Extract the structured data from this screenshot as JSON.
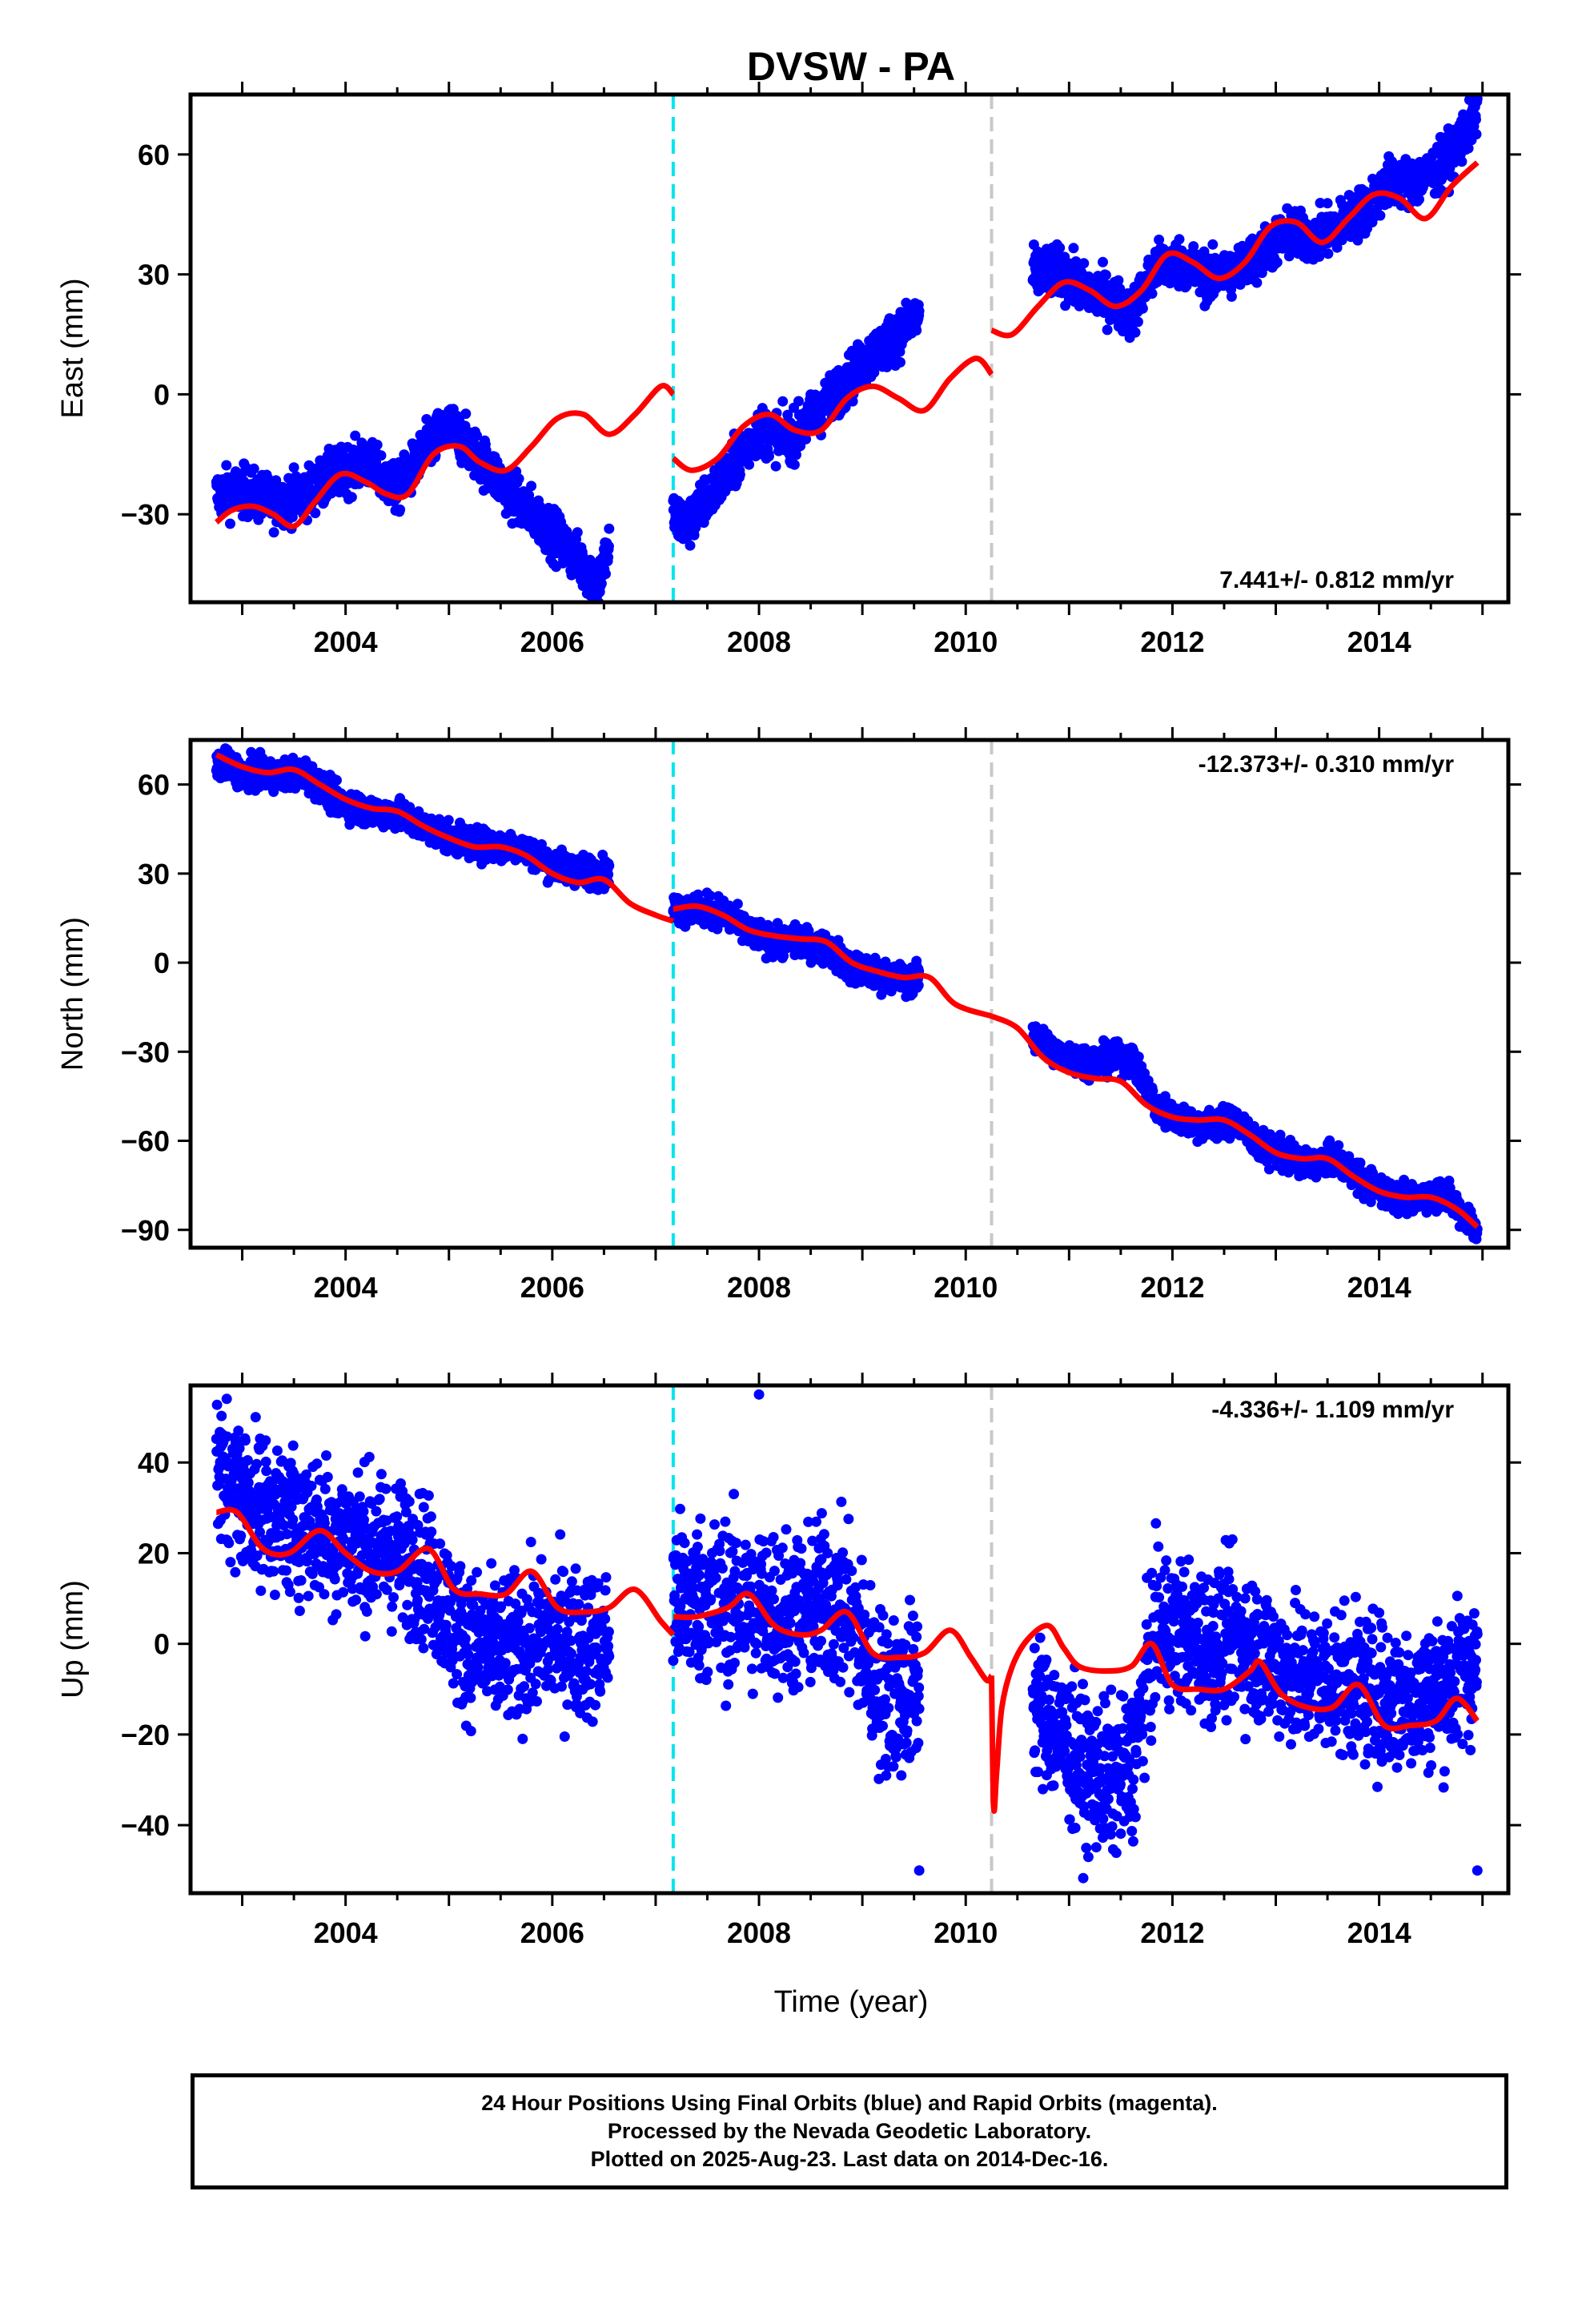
{
  "title": "DVSW - PA",
  "xlabel": "Time (year)",
  "footer": {
    "line1": "24 Hour Positions Using Final Orbits (blue) and Rapid Orbits (magenta).",
    "line2": "Processed by the Nevada Geodetic Laboratory.",
    "line3": "Plotted on 2025-Aug-23. Last data on 2014-Dec-16."
  },
  "colors": {
    "data": "#0000ff",
    "model": "#ff0000",
    "cyan_line": "#00e5ee",
    "gray_line": "#c8c8c8"
  },
  "chart_data": [
    {
      "type": "scatter",
      "ylabel": "East (mm)",
      "rate": "7.441+/- 0.812 mm/yr",
      "rate_position": "bottom-right",
      "xlim": [
        2002.5,
        2015.25
      ],
      "ylim": [
        -52,
        75
      ],
      "x_ticks": [
        2004,
        2006,
        2008,
        2010,
        2012,
        2014
      ],
      "y_ticks": [
        60,
        30,
        0,
        -30
      ],
      "y_tick_labels": [
        "60",
        "30",
        "0",
        "−30"
      ],
      "vlines": [
        {
          "x": 2007.17,
          "color": "cyan"
        },
        {
          "x": 2010.25,
          "color": "gray"
        }
      ],
      "scatter_bands": [
        {
          "x": [
            2002.75,
            2003.0,
            2003.3,
            2003.6,
            2003.9,
            2004.2,
            2004.5,
            2004.8,
            2005.0,
            2005.3,
            2005.6,
            2005.9,
            2006.2,
            2006.45,
            2006.55
          ],
          "y": [
            -25,
            -24,
            -27,
            -25,
            -20,
            -17,
            -24,
            -13,
            -8,
            -16,
            -25,
            -32,
            -40,
            -47,
            -38
          ],
          "spread": 3
        },
        {
          "x": [
            2007.17,
            2007.3,
            2007.5,
            2007.75,
            2008.0,
            2008.3,
            2008.55,
            2008.8,
            2009.1,
            2009.35,
            2009.55
          ],
          "y": [
            -30,
            -33,
            -26,
            -18,
            -9,
            -11,
            -5,
            2,
            10,
            15,
            20
          ],
          "spread": 3
        },
        {
          "x": [
            2010.65,
            2010.9,
            2011.15,
            2011.4,
            2011.6,
            2011.85,
            2012.1,
            2012.35,
            2012.6,
            2012.85,
            2013.1,
            2013.35,
            2013.6,
            2013.85,
            2014.1,
            2014.35,
            2014.6,
            2014.85,
            2014.95
          ],
          "y": [
            30,
            31,
            26,
            24,
            20,
            32,
            33,
            29,
            31,
            35,
            40,
            39,
            42,
            46,
            53,
            53,
            57,
            66,
            70
          ],
          "spread": 3
        }
      ],
      "model_segments": [
        {
          "x": [
            2002.75,
            2002.9,
            2003.1,
            2003.3,
            2003.5,
            2003.7,
            2003.95,
            2004.2,
            2004.4,
            2004.6,
            2004.85,
            2005.1,
            2005.3,
            2005.55,
            2005.8,
            2006.05,
            2006.3,
            2006.55,
            2006.8,
            2007.05,
            2007.17
          ],
          "y": [
            -32,
            -29,
            -28,
            -30,
            -33,
            -27,
            -20,
            -22,
            -25,
            -25,
            -15,
            -13,
            -17,
            -19,
            -13,
            -6,
            -5,
            -10,
            -5,
            2,
            0
          ]
        },
        {
          "x": [
            2007.17,
            2007.35,
            2007.6,
            2007.85,
            2008.1,
            2008.35,
            2008.6,
            2008.85,
            2009.1,
            2009.35,
            2009.6,
            2009.85,
            2010.1,
            2010.25
          ],
          "y": [
            -16,
            -19,
            -16,
            -8,
            -5,
            -9,
            -9,
            -1,
            2,
            -1,
            -4,
            4,
            9,
            5
          ]
        },
        {
          "x": [
            2010.25,
            2010.45,
            2010.7,
            2010.95,
            2011.2,
            2011.45,
            2011.7,
            2011.95,
            2012.2,
            2012.45,
            2012.7,
            2012.95,
            2013.2,
            2013.45,
            2013.7,
            2013.95,
            2014.2,
            2014.45,
            2014.7,
            2014.95
          ],
          "y": [
            16,
            15,
            22,
            28,
            26,
            22,
            26,
            35,
            33,
            29,
            33,
            42,
            43,
            38,
            44,
            50,
            49,
            44,
            52,
            58
          ]
        }
      ]
    },
    {
      "type": "scatter",
      "ylabel": "North (mm)",
      "rate": "-12.373+/- 0.310 mm/yr",
      "rate_position": "top-right",
      "xlim": [
        2002.5,
        2015.25
      ],
      "ylim": [
        -96,
        75
      ],
      "x_ticks": [
        2004,
        2006,
        2008,
        2010,
        2012,
        2014
      ],
      "y_ticks": [
        60,
        30,
        0,
        -30,
        -60,
        -90
      ],
      "y_tick_labels": [
        "60",
        "30",
        "0",
        "−30",
        "−60",
        "−90"
      ],
      "vlines": [
        {
          "x": 2007.17,
          "color": "cyan"
        },
        {
          "x": 2010.25,
          "color": "gray"
        }
      ],
      "scatter_bands": [
        {
          "x": [
            2002.75,
            2003.0,
            2003.3,
            2003.6,
            2003.9,
            2004.2,
            2004.5,
            2004.8,
            2005.1,
            2005.4,
            2005.7,
            2006.0,
            2006.3,
            2006.55
          ],
          "y": [
            68,
            64,
            63,
            64,
            55,
            51,
            50,
            45,
            41,
            39,
            39,
            33,
            31,
            30
          ],
          "spread": 2.5
        },
        {
          "x": [
            2007.17,
            2007.4,
            2007.65,
            2007.9,
            2008.15,
            2008.4,
            2008.65,
            2008.9,
            2009.15,
            2009.4,
            2009.55
          ],
          "y": [
            18,
            18,
            17,
            10,
            7,
            7,
            5,
            -2,
            -4,
            -6,
            -5
          ],
          "spread": 2.5
        },
        {
          "x": [
            2010.65,
            2010.9,
            2011.15,
            2011.4,
            2011.6,
            2011.85,
            2012.1,
            2012.35,
            2012.6,
            2012.85,
            2013.1,
            2013.35,
            2013.6,
            2013.85,
            2014.1,
            2014.35,
            2014.6,
            2014.85,
            2014.95
          ],
          "y": [
            -25,
            -31,
            -33,
            -33,
            -32,
            -49,
            -53,
            -55,
            -53,
            -62,
            -65,
            -68,
            -66,
            -74,
            -78,
            -80,
            -77,
            -86,
            -90
          ],
          "spread": 2.5
        }
      ],
      "model_segments": [
        {
          "x": [
            2002.75,
            2003.0,
            2003.25,
            2003.5,
            2003.75,
            2004.0,
            2004.25,
            2004.5,
            2004.75,
            2005.0,
            2005.25,
            2005.5,
            2005.75,
            2006.0,
            2006.25,
            2006.5,
            2006.75,
            2007.0,
            2007.17
          ],
          "y": [
            70,
            66,
            64,
            65,
            60,
            55,
            52,
            51,
            46,
            42,
            39,
            39,
            36,
            30,
            27,
            28,
            20,
            16,
            14
          ]
        },
        {
          "x": [
            2007.17,
            2007.4,
            2007.65,
            2007.9,
            2008.15,
            2008.4,
            2008.65,
            2008.9,
            2009.15,
            2009.4,
            2009.65,
            2009.9,
            2010.25
          ],
          "y": [
            18,
            19,
            16,
            11,
            9,
            8,
            7,
            0,
            -3,
            -5,
            -5,
            -14,
            -18
          ]
        },
        {
          "x": [
            2010.25,
            2010.5,
            2010.75,
            2011.0,
            2011.25,
            2011.5,
            2011.75,
            2012.0,
            2012.25,
            2012.5,
            2012.75,
            2013.0,
            2013.25,
            2013.5,
            2013.75,
            2014.0,
            2014.25,
            2014.5,
            2014.75,
            2014.95
          ],
          "y": [
            -18,
            -22,
            -32,
            -37,
            -39,
            -40,
            -48,
            -52,
            -53,
            -53,
            -58,
            -64,
            -66,
            -66,
            -72,
            -77,
            -79,
            -79,
            -83,
            -89
          ]
        }
      ]
    },
    {
      "type": "scatter",
      "ylabel": "Up (mm)",
      "rate": "-4.336+/- 1.109 mm/yr",
      "rate_position": "top-right",
      "xlim": [
        2002.5,
        2015.25
      ],
      "ylim": [
        -55,
        57
      ],
      "x_ticks": [
        2004,
        2006,
        2008,
        2010,
        2012,
        2014
      ],
      "y_ticks": [
        40,
        20,
        0,
        -20,
        -40
      ],
      "y_tick_labels": [
        "40",
        "20",
        "0",
        "−20",
        "−40"
      ],
      "vlines": [
        {
          "x": 2007.17,
          "color": "cyan"
        },
        {
          "x": 2010.25,
          "color": "gray"
        }
      ],
      "scatter_bands": [
        {
          "x": [
            2002.75,
            2003.0,
            2003.3,
            2003.6,
            2003.9,
            2004.2,
            2004.5,
            2004.8,
            2005.1,
            2005.4,
            2005.7,
            2006.0,
            2006.3,
            2006.55
          ],
          "y": [
            38,
            33,
            28,
            27,
            24,
            22,
            20,
            16,
            2,
            -2,
            -1,
            2,
            0,
            0
          ],
          "spread": 8
        },
        {
          "x": [
            2007.17,
            2007.4,
            2007.65,
            2007.9,
            2008.15,
            2008.4,
            2008.65,
            2008.9,
            2009.15,
            2009.4,
            2009.55
          ],
          "y": [
            10,
            10,
            9,
            8,
            8,
            6,
            10,
            6,
            -10,
            -12,
            -8
          ],
          "spread": 9
        },
        {
          "x": [
            2010.65,
            2010.9,
            2011.15,
            2011.4,
            2011.6,
            2011.85,
            2012.1,
            2012.35,
            2012.6,
            2012.85,
            2013.1,
            2013.35,
            2013.6,
            2013.85,
            2014.1,
            2014.35,
            2014.6,
            2014.85,
            2014.95
          ],
          "y": [
            -12,
            -20,
            -28,
            -30,
            -28,
            4,
            2,
            0,
            2,
            -2,
            -6,
            -8,
            -8,
            -10,
            -12,
            -12,
            -10,
            -6,
            -4
          ],
          "spread": 8
        }
      ],
      "outliers": [
        [
          2008.0,
          55
        ],
        [
          2009.55,
          -50
        ],
        [
          2014.95,
          -50
        ]
      ],
      "model_segments": [
        {
          "x": [
            2002.75,
            2002.95,
            2003.2,
            2003.45,
            2003.75,
            2004.0,
            2004.25,
            2004.5,
            2004.8,
            2005.05,
            2005.3,
            2005.55,
            2005.8,
            2006.05,
            2006.3,
            2006.55,
            2006.8,
            2007.05,
            2007.17
          ],
          "y": [
            29,
            29,
            21,
            20,
            25,
            20,
            16,
            16,
            21,
            12,
            11,
            11,
            16,
            8,
            7,
            8,
            12,
            5,
            2
          ]
        },
        {
          "x": [
            2007.17,
            2007.4,
            2007.7,
            2007.9,
            2008.15,
            2008.4,
            2008.6,
            2008.85,
            2009.1,
            2009.35,
            2009.6,
            2009.85,
            2010.05,
            2010.2,
            2010.25
          ],
          "y": [
            6,
            6,
            8,
            11,
            4,
            2,
            3,
            7,
            -2,
            -3,
            -2,
            3,
            -3,
            -8,
            -7
          ]
        },
        {
          "x": [
            2010.25,
            2010.27,
            2010.3,
            2010.35,
            2010.45,
            2010.6,
            2010.8,
            2010.95,
            2011.1,
            2011.35,
            2011.6,
            2011.8,
            2012.0,
            2012.25,
            2012.5,
            2012.75,
            2012.85,
            2013.05,
            2013.3,
            2013.55,
            2013.8,
            2014.05,
            2014.3,
            2014.55,
            2014.75,
            2014.95
          ],
          "y": [
            -7,
            -36,
            -28,
            -14,
            -5,
            1,
            4,
            -1,
            -5,
            -6,
            -5,
            0,
            -9,
            -10,
            -10,
            -6,
            -4,
            -11,
            -14,
            -14,
            -9,
            -18,
            -18,
            -17,
            -12,
            -17
          ]
        }
      ]
    }
  ]
}
